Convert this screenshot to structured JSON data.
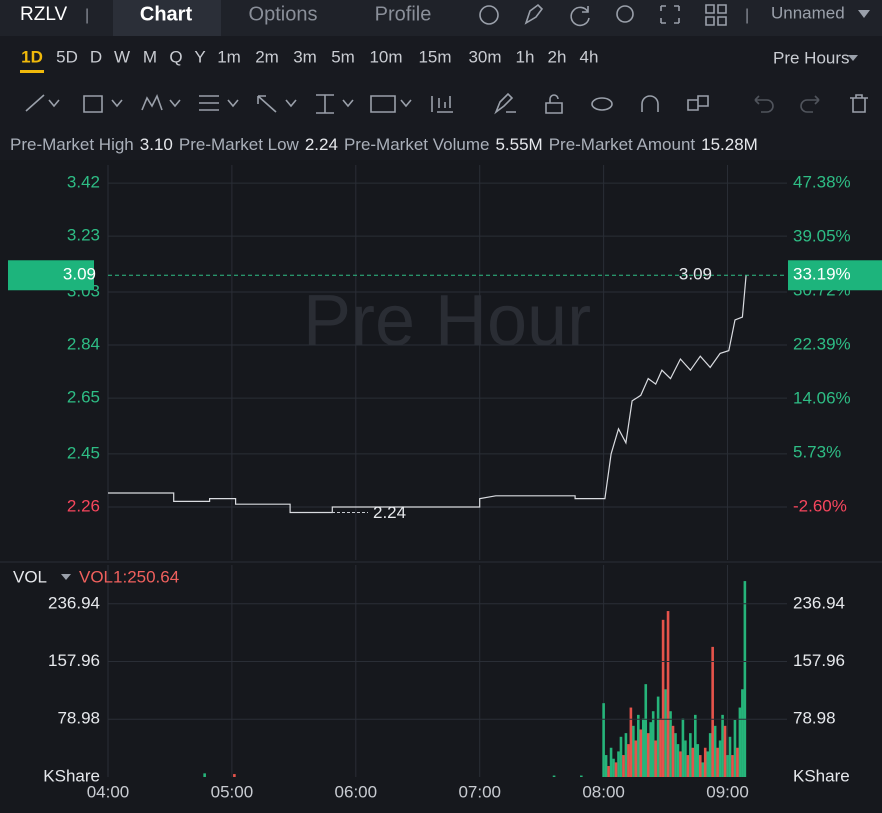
{
  "header": {
    "symbol": "RZLV",
    "tabs": [
      "Chart",
      "Options",
      "Profile"
    ],
    "active_tab": 0,
    "workspace": "Unnamed"
  },
  "periods": [
    "1D",
    "5D",
    "D",
    "W",
    "M",
    "Q",
    "Y",
    "1m",
    "2m",
    "3m",
    "5m",
    "10m",
    "15m",
    "30m",
    "1h",
    "2h",
    "4h"
  ],
  "active_period": 0,
  "session": "Pre Hours",
  "stats": [
    {
      "label": "Pre-Market High",
      "value": "3.10"
    },
    {
      "label": "Pre-Market Low",
      "value": "2.24"
    },
    {
      "label": "Pre-Market Volume",
      "value": "5.55M"
    },
    {
      "label": "Pre-Market Amount",
      "value": "15.28M"
    }
  ],
  "chart_data": [
    {
      "type": "line",
      "watermark": "Pre Hour",
      "grid": true,
      "x": [
        4.0,
        4.53,
        4.53,
        4.82,
        4.82,
        5.03,
        5.03,
        5.47,
        5.47,
        5.81,
        5.81,
        7.0,
        7.0,
        7.13,
        7.77,
        7.77,
        8.01,
        8.06,
        8.12,
        8.18,
        8.23,
        8.3,
        8.36,
        8.42,
        8.47,
        8.54,
        8.62,
        8.7,
        8.78,
        8.86,
        8.94,
        9.01,
        9.06,
        9.12,
        9.15
      ],
      "series": [
        {
          "color": "#d9dbe0",
          "values": [
            2.31,
            2.31,
            2.28,
            2.28,
            2.29,
            2.29,
            2.27,
            2.27,
            2.24,
            2.24,
            2.26,
            2.26,
            2.29,
            2.3,
            2.3,
            2.29,
            2.29,
            2.45,
            2.54,
            2.49,
            2.64,
            2.66,
            2.72,
            2.7,
            2.75,
            2.72,
            2.79,
            2.75,
            2.8,
            2.76,
            2.81,
            2.82,
            2.93,
            2.94,
            3.09
          ]
        }
      ],
      "ylim": [
        2.07,
        3.485
      ],
      "yticks": [
        3.42,
        3.23,
        3.03,
        2.84,
        2.65,
        2.45,
        2.26
      ],
      "y2lim": [
        -10.78,
        50.16
      ],
      "y2ticks": [
        {
          "value": 47.38,
          "label": "47.38%"
        },
        {
          "value": 39.05,
          "label": "39.05%"
        },
        {
          "value": 30.72,
          "label": "30.72%"
        },
        {
          "value": 22.39,
          "label": "22.39%"
        },
        {
          "value": 14.06,
          "label": "14.06%"
        },
        {
          "value": 5.73,
          "label": "5.73%"
        },
        {
          "value": -2.6,
          "label": "-2.60%"
        }
      ],
      "up_color": "#2ebd85",
      "down_color": "#f6465d",
      "last_price": 3.09,
      "last_change": {
        "value": 33.19,
        "label": "33.19%"
      },
      "low": 2.24
    },
    {
      "type": "bar",
      "indicator": "VOL",
      "indicator_value": "VOL1:250.64",
      "xlim": [
        4,
        9.48
      ],
      "xticks": [
        {
          "value": 4,
          "label": "04:00"
        },
        {
          "value": 5,
          "label": "05:00"
        },
        {
          "value": 6,
          "label": "06:00"
        },
        {
          "value": 7,
          "label": "07:00"
        },
        {
          "value": 8,
          "label": "08:00"
        },
        {
          "value": 9,
          "label": "09:00"
        }
      ],
      "ylim": [
        0,
        290
      ],
      "yticks": [
        {
          "value": 0,
          "label": "KShare"
        },
        78.98,
        157.96,
        236.94
      ],
      "series": [
        {
          "color": "#26b47a",
          "x": [
            4.78,
            7.6,
            7.82,
            8.0,
            8.02,
            8.06,
            8.08,
            8.12,
            8.14,
            8.18,
            8.24,
            8.28,
            8.32,
            8.34,
            8.38,
            8.4,
            8.44,
            8.5,
            8.54,
            8.58,
            8.6,
            8.64,
            8.66,
            8.7,
            8.74,
            8.76,
            8.8,
            8.84,
            8.86,
            8.9,
            8.94,
            8.96,
            9.0,
            9.02,
            9.06,
            9.1,
            9.12,
            9.14
          ],
          "values": [
            5,
            2,
            2,
            101,
            30,
            40,
            25,
            35,
            55,
            60,
            70,
            85,
            80,
            127,
            75,
            90,
            110,
            120,
            90,
            60,
            45,
            80,
            50,
            60,
            85,
            45,
            20,
            35,
            60,
            70,
            50,
            85,
            30,
            55,
            78,
            95,
            120,
            268
          ]
        },
        {
          "color": "#e5534b",
          "x": [
            5.02,
            8.04,
            8.1,
            8.16,
            8.2,
            8.22,
            8.26,
            8.3,
            8.36,
            8.42,
            8.46,
            8.48,
            8.52,
            8.56,
            8.62,
            8.68,
            8.72,
            8.78,
            8.82,
            8.88,
            8.92,
            8.98,
            9.04,
            9.08
          ],
          "values": [
            4,
            15,
            20,
            30,
            45,
            95,
            50,
            65,
            60,
            50,
            80,
            215,
            227,
            70,
            35,
            30,
            40,
            30,
            40,
            178,
            40,
            70,
            30,
            40
          ]
        }
      ]
    }
  ]
}
